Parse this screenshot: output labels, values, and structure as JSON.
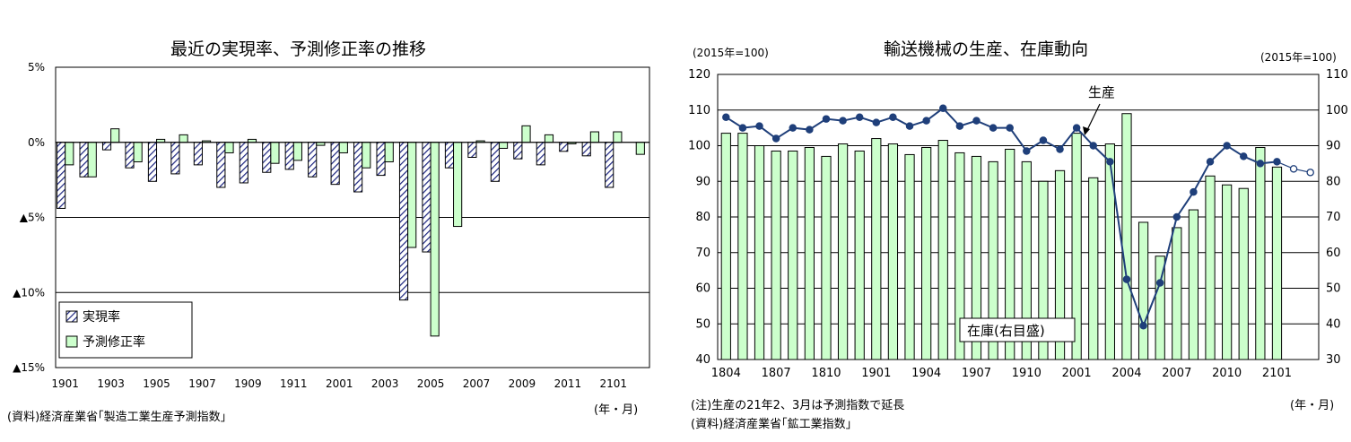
{
  "chart_data": [
    {
      "type": "bar",
      "title": "最近の実現率、予測修正率の推移",
      "source": "(資料)経済産業省｢製造工業生産予測指数｣",
      "x_unit": "(年・月)",
      "ylim": [
        -15,
        5
      ],
      "y_ticks": [
        5,
        0,
        -5,
        -10,
        -15
      ],
      "y_tick_labels": [
        "5%",
        "0%",
        "▲5%",
        "▲10%",
        "▲15%"
      ],
      "x_tick_labels": [
        "1901",
        "1903",
        "1905",
        "1907",
        "1909",
        "1911",
        "2001",
        "2003",
        "2005",
        "2007",
        "2009",
        "2011",
        "2101"
      ],
      "categories": [
        "1901",
        "1902",
        "1903",
        "1904",
        "1905",
        "1906",
        "1907",
        "1908",
        "1909",
        "1910",
        "1911",
        "1912",
        "2001",
        "2002",
        "2003",
        "2004",
        "2005",
        "2006",
        "2007",
        "2008",
        "2009",
        "2010",
        "2011",
        "2012",
        "2101",
        "2102"
      ],
      "series": [
        {
          "name": "実現率",
          "pattern": "hatched",
          "color": "#1a237e",
          "values": [
            -4.4,
            -2.3,
            -0.5,
            -1.7,
            -2.6,
            -2.1,
            -1.5,
            -3.0,
            -2.7,
            -2.0,
            -1.8,
            -2.3,
            -2.8,
            -3.3,
            -2.2,
            -10.5,
            -7.3,
            -1.7,
            -1.0,
            -2.6,
            -1.1,
            -1.5,
            -0.6,
            -0.9,
            -3.0,
            null
          ]
        },
        {
          "name": "予測修正率",
          "color": "#ccffcc",
          "values": [
            -1.5,
            -2.3,
            0.9,
            -1.3,
            0.2,
            0.5,
            0.1,
            -0.7,
            0.2,
            -1.4,
            -1.2,
            -0.2,
            -0.7,
            -1.7,
            -1.3,
            -7.0,
            -12.9,
            -5.6,
            0.1,
            -0.4,
            1.1,
            0.5,
            -0.1,
            0.7,
            0.7,
            -0.8
          ]
        }
      ],
      "grid": "horizontal",
      "legend": "bottom-left"
    },
    {
      "type": "bar+line",
      "title": "輸送機械の生産、在庫動向",
      "left_axis_unit": "(2015年=100)",
      "right_axis_unit": "(2015年=100)",
      "note": "(注)生産の21年2、3月は予測指数で延長",
      "source": "(資料)経済産業省｢鉱工業指数｣",
      "x_unit": "(年・月)",
      "ylim_left": [
        40,
        120
      ],
      "y_ticks_left": [
        40,
        50,
        60,
        70,
        80,
        90,
        100,
        110,
        120
      ],
      "ylim_right": [
        30,
        110
      ],
      "y_ticks_right": [
        30,
        40,
        50,
        60,
        70,
        80,
        90,
        100,
        110
      ],
      "x_tick_labels": [
        "1804",
        "1807",
        "1810",
        "1901",
        "1904",
        "1907",
        "1910",
        "2001",
        "2004",
        "2007",
        "2010",
        "2101"
      ],
      "categories": [
        "1804",
        "1805",
        "1806",
        "1807",
        "1808",
        "1809",
        "1810",
        "1811",
        "1812",
        "1901",
        "1902",
        "1903",
        "1904",
        "1905",
        "1906",
        "1907",
        "1908",
        "1909",
        "1910",
        "1911",
        "1912",
        "2001",
        "2002",
        "2003",
        "2004",
        "2005",
        "2006",
        "2007",
        "2008",
        "2009",
        "2010",
        "2011",
        "2012",
        "2101",
        "2102",
        "2103"
      ],
      "bar_series": {
        "name": "在庫(右目盛)",
        "axis": "right",
        "color": "#ccffcc",
        "values": [
          93.5,
          93.5,
          90.0,
          88.5,
          88.5,
          89.5,
          87.0,
          90.5,
          88.5,
          92.0,
          90.5,
          87.5,
          89.5,
          91.5,
          88.0,
          87.0,
          85.5,
          89.0,
          85.5,
          80.0,
          83.0,
          93.5,
          81.0,
          90.5,
          99.0,
          68.5,
          59.0,
          67.0,
          72.0,
          81.5,
          79.0,
          78.0,
          89.5,
          84.0,
          null,
          null
        ]
      },
      "line_series": {
        "name": "生産",
        "axis": "left",
        "color": "#1f3f7a",
        "values": [
          108,
          105,
          105.5,
          102,
          105,
          104.5,
          107.5,
          107,
          108,
          106.5,
          108,
          105.5,
          107,
          110.5,
          105.5,
          107,
          105,
          105,
          98.5,
          101.5,
          99,
          105,
          100,
          95.5,
          62.5,
          49.5,
          61.5,
          80,
          87,
          95.5,
          100,
          97,
          95,
          95.5,
          93.5,
          92.5
        ],
        "projected_from_index": 34
      },
      "annotations": [
        {
          "text": "生産"
        },
        {
          "text": "在庫(右目盛)"
        }
      ],
      "grid": "horizontal"
    }
  ],
  "labels": {
    "left_title": "最近の実現率、予測修正率の推移",
    "left_source": "(資料)経済産業省｢製造工業生産予測指数｣",
    "left_xunit": "(年・月)",
    "right_title": "輸送機械の生産、在庫動向",
    "right_yunit_left": "(2015年=100)",
    "right_yunit_right": "(2015年=100)",
    "right_note": "(注)生産の21年2、3月は予測指数で延長",
    "right_source": "(資料)経済産業省｢鉱工業指数｣",
    "right_xunit": "(年・月)"
  }
}
